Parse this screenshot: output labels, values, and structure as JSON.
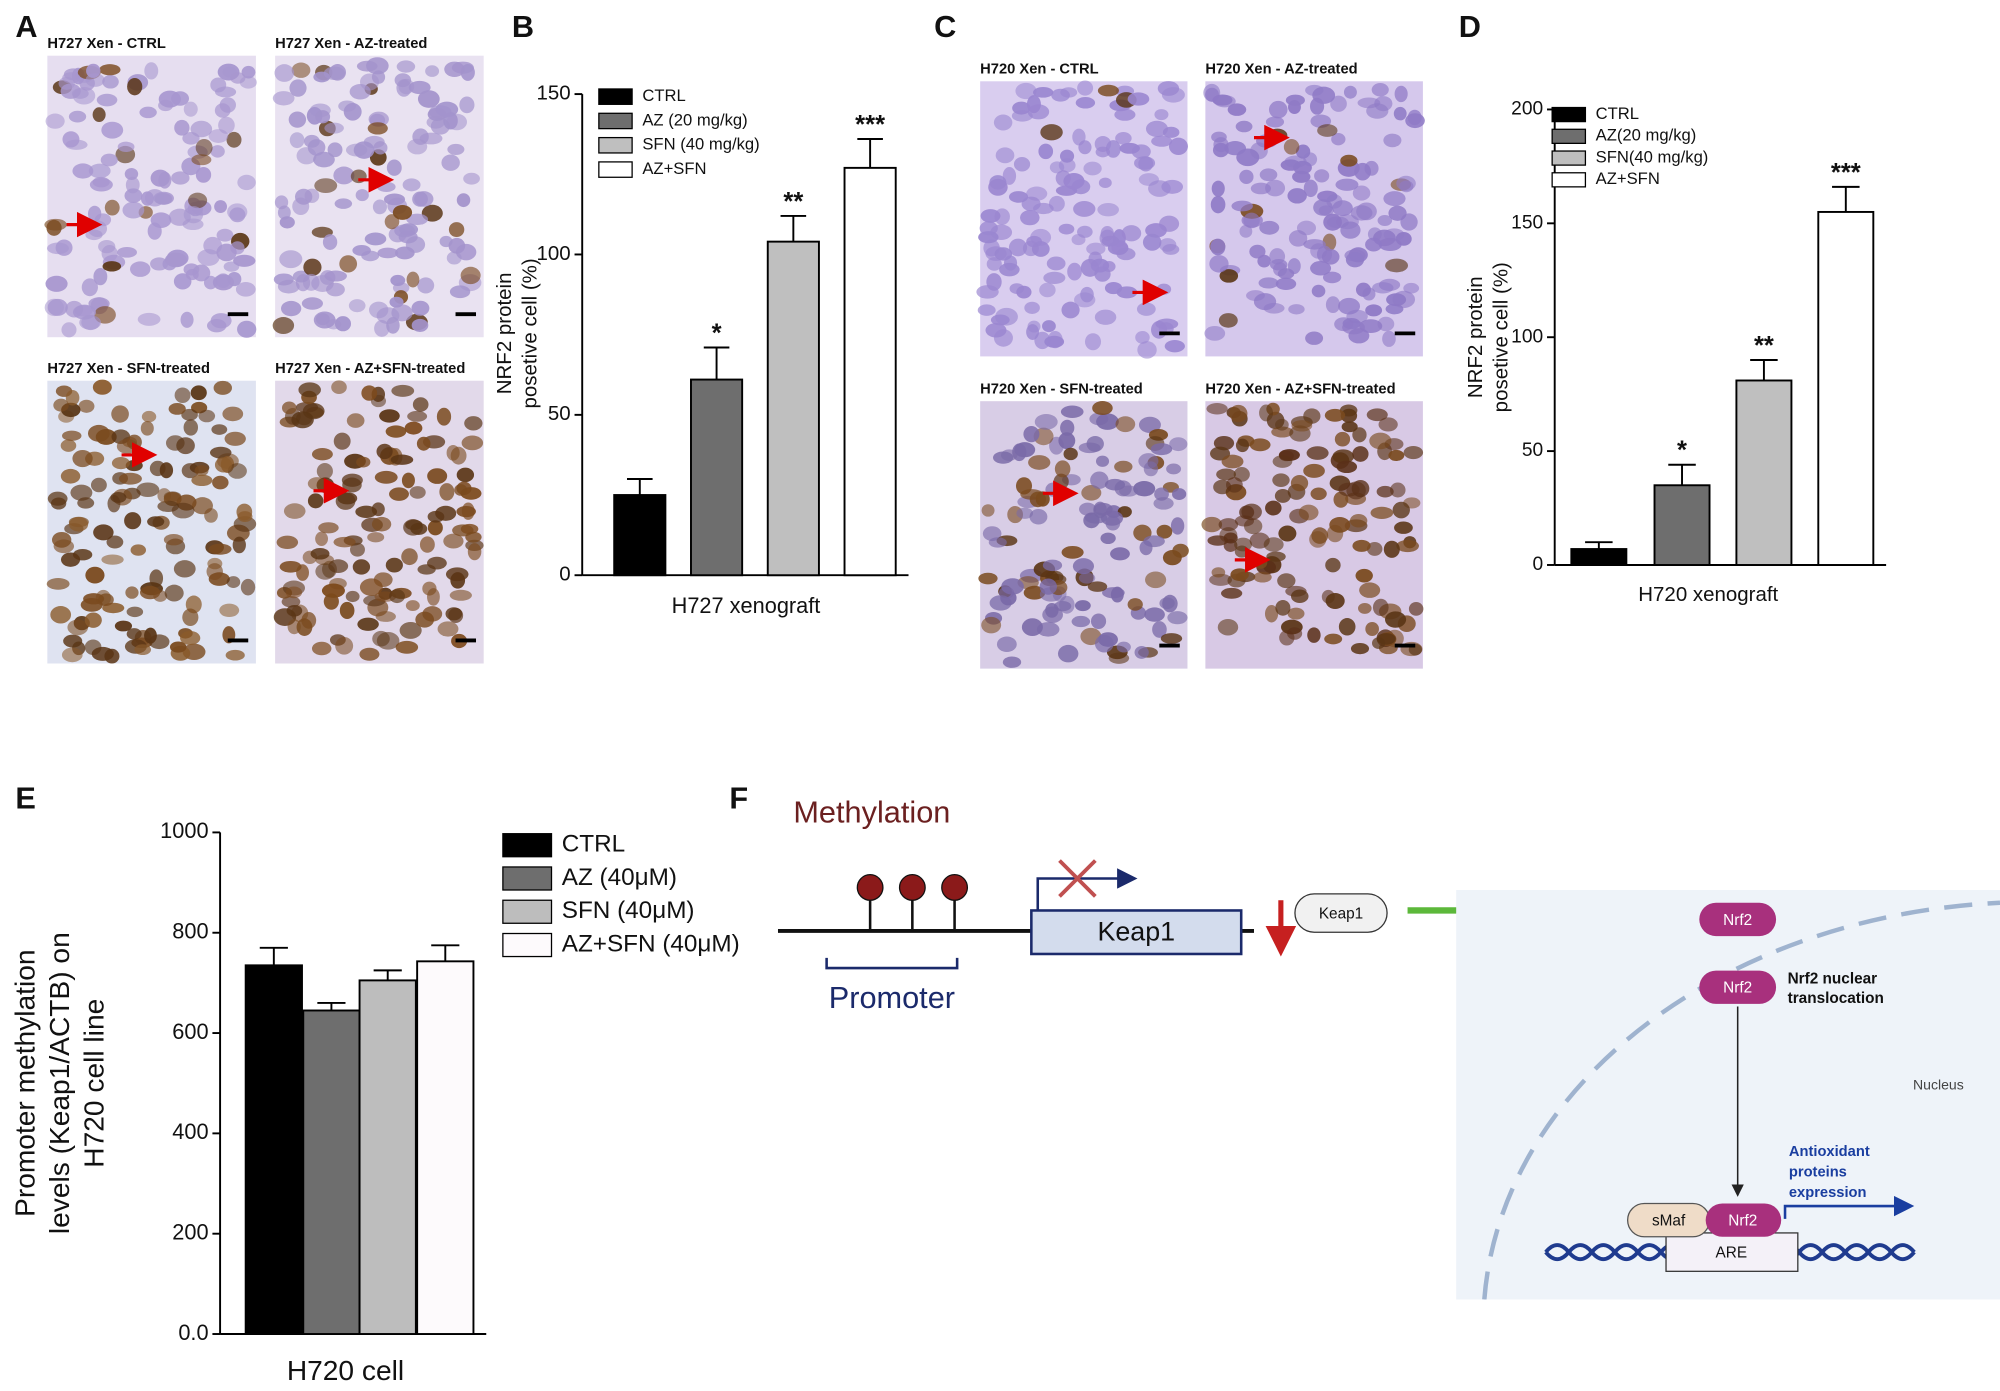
{
  "panel_labels": [
    "A",
    "B",
    "C",
    "D",
    "E",
    "F"
  ],
  "micrographs": {
    "A": [
      "H727 Xen - CTRL",
      "H727 Xen - AZ-treated",
      "H727 Xen - SFN-treated",
      "H727 Xen - AZ+SFN-treated"
    ],
    "C": [
      "H720 Xen - CTRL",
      "H720 Xen - AZ-treated",
      "H720 Xen - SFN-treated",
      "H720 Xen - AZ+SFN-treated"
    ]
  },
  "chart_data": [
    {
      "type": "bar",
      "y_label": [
        "NRF2 protein",
        "posetive cell (%)"
      ],
      "x_label": "H727 xenograft",
      "ylim": [
        0,
        150
      ],
      "yticks": [
        0,
        50,
        100,
        150
      ],
      "series": [
        {
          "name": "CTRL",
          "color": "#000000",
          "values": [
            25
          ],
          "errors": [
            5
          ]
        },
        {
          "name": "AZ (20 mg/kg)",
          "color": "#6e6e6e",
          "values": [
            61
          ],
          "errors": [
            10
          ],
          "annotation": "*"
        },
        {
          "name": "SFN (40 mg/kg)",
          "color": "#bfbfbf",
          "values": [
            104
          ],
          "errors": [
            8
          ],
          "annotation": "**"
        },
        {
          "name": "AZ+SFN",
          "color": "#ffffff",
          "values": [
            127
          ],
          "errors": [
            9
          ],
          "annotation": "***"
        }
      ]
    },
    {
      "type": "bar",
      "y_label": [
        "NRF2 protein",
        "posetive cell (%)"
      ],
      "x_label": "H720 xenograft",
      "ylim": [
        0,
        200
      ],
      "yticks": [
        0,
        50,
        100,
        150,
        200
      ],
      "series": [
        {
          "name": "CTRL",
          "color": "#000000",
          "values": [
            7
          ],
          "errors": [
            3
          ]
        },
        {
          "name": "AZ(20 mg/kg)",
          "color": "#6e6e6e",
          "values": [
            35
          ],
          "errors": [
            9
          ],
          "annotation": "*"
        },
        {
          "name": "SFN(40 mg/kg)",
          "color": "#bfbfbf",
          "values": [
            81
          ],
          "errors": [
            9
          ],
          "annotation": "**"
        },
        {
          "name": "AZ+SFN",
          "color": "#ffffff",
          "values": [
            155
          ],
          "errors": [
            11
          ],
          "annotation": "***"
        }
      ]
    },
    {
      "type": "bar",
      "y_label": [
        "Promoter methylation",
        "levels (Keap1/ACTB) on",
        "H720 cell line"
      ],
      "x_label": "H720 cell",
      "ylim": [
        0,
        1000
      ],
      "yticks": [
        {
          "value": 0,
          "label": "0.0"
        },
        200,
        400,
        600,
        800,
        1000
      ],
      "series": [
        {
          "name": "CTRL",
          "color": "#000000",
          "values": [
            735
          ],
          "errors": [
            35
          ]
        },
        {
          "name": "AZ (40μM)",
          "color": "#6e6e6e",
          "values": [
            645
          ],
          "errors": [
            15
          ]
        },
        {
          "name": "SFN (40μM)",
          "color": "#bdbdbd",
          "values": [
            705
          ],
          "errors": [
            20
          ]
        },
        {
          "name": "AZ+SFN (40μM)",
          "color": "#fdfafc",
          "values": [
            743
          ],
          "errors": [
            32
          ]
        }
      ]
    }
  ],
  "diagram": {
    "methylation": "Methylation",
    "promoter": "Promoter",
    "gene": "Keap1",
    "keap1_protein": "Keap1",
    "nrf2_cytoplasm": "Nrf2",
    "nrf2_translocating": "Nrf2",
    "translocation": [
      "Nrf2 nuclear",
      "translocation"
    ],
    "nucleus": "Nucleus",
    "output": [
      "Antioxidant",
      "proteins",
      "expression"
    ],
    "smaf": "sMaf",
    "nrf2_bound": "Nrf2",
    "are": "ARE"
  }
}
